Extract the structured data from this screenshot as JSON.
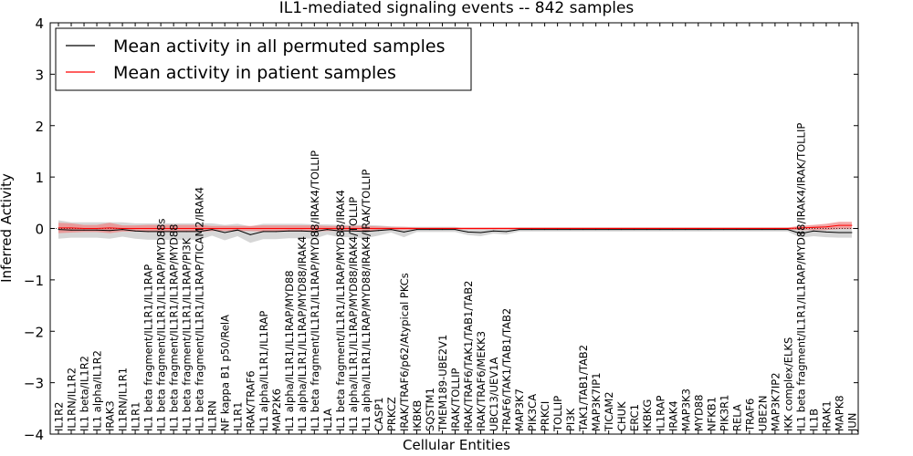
{
  "chart_data": {
    "type": "line",
    "title": "IL1-mediated signaling events -- 842 samples",
    "xlabel": "Cellular Entities",
    "ylabel": "Inferred Activity",
    "ylim": [
      -4,
      4
    ],
    "yticks": [
      "4",
      "3",
      "2",
      "1",
      "0",
      "−1",
      "−2",
      "−3",
      "−4"
    ],
    "ytick_values": [
      4,
      3,
      2,
      1,
      0,
      -1,
      -2,
      -3,
      -4
    ],
    "legend_position": "top-left",
    "categories": [
      "IL1R2",
      "IL1RN/IL1R2",
      "IL1 beta/IL1R2",
      "IL1 alpha/IL1R2",
      "IRAK3",
      "IL1RN/IL1R1",
      "IL1R1",
      "IL1 beta fragment/IL1R1/IL1RAP",
      "IL1 beta fragment/IL1R1/IL1RAP/MYD88s",
      "IL1 beta fragment/IL1R1/IL1RAP/MYD88",
      "IL1 beta fragment/IL1R1/IL1RAP/PI3K",
      "IL1 beta fragment/IL1R1/IL1RAP/TICAM2/IRAK4",
      "IL1RN",
      "NF kappa B1 p50/RelA",
      "IL1R1",
      "IRAK/TRAF6",
      "IL1 alpha/IL1R1/IL1RAP",
      "MAP2K6",
      "IL1 alpha/IL1R1/IL1RAP/MYD88",
      "IL1 alpha/IL1R1/IL1RAP/MYD88/IRAK4",
      "IL1 beta fragment/IL1R1/IL1RAP/MYD88/IRAK4/TOLLIP",
      "IL1A",
      "IL1 beta fragment/IL1R1/IL1RAP/MYD88/IRAK4",
      "IL1 alpha/IL1R1/IL1RAP/MYD88/IRAK4/TOLLIP",
      "IL1 alpha/IL1R1/IL1RAP/MYD88/IRAK4/IRAK/TOLLIP",
      "CASP1",
      "PRKCZ",
      "IRAK/TRAF6/p62/Atypical PKCs",
      "IKBKB",
      "SQSTM1",
      "TMEM189-UBE2V1",
      "IRAK/TOLLIP",
      "IRAK/TRAF6/TAK1/TAB1/TAB2",
      "IRAK/TRAF6/MEKK3",
      "UBC13/UEV1A",
      "TRAF6/TAK1/TAB1/TAB2",
      "MAP3K7",
      "PIK3CA",
      "PRKCI",
      "TOLLIP",
      "PI3K",
      "TAK1/TAB1/TAB2",
      "MAP3K7IP1",
      "TICAM2",
      "CHUK",
      "ERC1",
      "IKBKG",
      "IL1RAP",
      "IRAK4",
      "MAP3K3",
      "MYD88",
      "NFKB1",
      "PIK3R1",
      "RELA",
      "TRAF6",
      "UBE2N",
      "MAP3K7IP2",
      "IKK complex/ELKS",
      "IL1 beta fragment/IL1R1/IL1RAP/MYD88/IRAK4/IRAK/TOLLIP",
      "IL1B",
      "IRAK1",
      "MAPK8",
      "JUN"
    ],
    "series": [
      {
        "name": "Mean activity in all permuted samples",
        "color": "#000000",
        "band_color": "#c8c8c8",
        "values": [
          -0.02,
          -0.03,
          -0.03,
          -0.03,
          -0.04,
          -0.02,
          -0.05,
          -0.06,
          -0.06,
          -0.06,
          -0.06,
          -0.06,
          -0.02,
          -0.08,
          -0.03,
          -0.12,
          -0.06,
          -0.06,
          -0.05,
          -0.05,
          -0.06,
          -0.02,
          -0.05,
          -0.05,
          -0.06,
          -0.04,
          -0.02,
          -0.07,
          -0.02,
          -0.02,
          -0.02,
          -0.02,
          -0.07,
          -0.08,
          -0.05,
          -0.06,
          -0.02,
          -0.02,
          -0.02,
          -0.02,
          -0.02,
          -0.02,
          -0.02,
          -0.02,
          -0.02,
          -0.02,
          -0.02,
          -0.02,
          -0.02,
          -0.02,
          -0.02,
          -0.02,
          -0.02,
          -0.02,
          -0.02,
          -0.02,
          -0.02,
          -0.02,
          -0.1,
          -0.05,
          -0.07,
          -0.08,
          -0.08
        ],
        "band": [
          0.18,
          0.15,
          0.15,
          0.15,
          0.16,
          0.14,
          0.15,
          0.16,
          0.16,
          0.16,
          0.16,
          0.16,
          0.12,
          0.15,
          0.12,
          0.16,
          0.15,
          0.15,
          0.14,
          0.14,
          0.14,
          0.1,
          0.12,
          0.12,
          0.13,
          0.1,
          0.06,
          0.1,
          0.05,
          0.05,
          0.05,
          0.05,
          0.06,
          0.07,
          0.05,
          0.06,
          0.04,
          0.04,
          0.04,
          0.04,
          0.04,
          0.04,
          0.04,
          0.04,
          0.04,
          0.04,
          0.04,
          0.04,
          0.04,
          0.04,
          0.04,
          0.04,
          0.04,
          0.04,
          0.04,
          0.04,
          0.04,
          0.04,
          0.08,
          0.1,
          0.1,
          0.1,
          0.1
        ]
      },
      {
        "name": "Mean activity in patient samples",
        "color": "#ff0000",
        "band_color": "#f08080",
        "values": [
          0.01,
          0.01,
          0.0,
          0.0,
          0.01,
          0.0,
          0.0,
          0.0,
          0.0,
          0.0,
          0.0,
          0.0,
          0.0,
          0.0,
          0.0,
          0.0,
          0.0,
          0.0,
          0.0,
          0.0,
          0.0,
          0.0,
          0.0,
          0.0,
          0.0,
          0.0,
          0.0,
          0.0,
          0.0,
          0.0,
          0.0,
          0.0,
          0.0,
          0.0,
          0.0,
          0.0,
          0.0,
          0.0,
          0.0,
          0.0,
          0.0,
          0.0,
          0.0,
          0.0,
          0.0,
          0.0,
          0.0,
          0.0,
          0.0,
          0.0,
          0.0,
          0.0,
          0.0,
          0.0,
          0.0,
          0.0,
          0.0,
          0.0,
          0.01,
          0.02,
          0.03,
          0.06,
          0.06
        ],
        "band": [
          0.1,
          0.09,
          0.07,
          0.07,
          0.1,
          0.06,
          0.06,
          0.07,
          0.07,
          0.07,
          0.07,
          0.07,
          0.05,
          0.05,
          0.05,
          0.05,
          0.06,
          0.06,
          0.06,
          0.06,
          0.06,
          0.05,
          0.05,
          0.05,
          0.05,
          0.04,
          0.03,
          0.03,
          0.02,
          0.02,
          0.02,
          0.02,
          0.02,
          0.02,
          0.02,
          0.02,
          0.02,
          0.02,
          0.02,
          0.02,
          0.02,
          0.02,
          0.02,
          0.02,
          0.02,
          0.02,
          0.02,
          0.02,
          0.02,
          0.02,
          0.02,
          0.02,
          0.02,
          0.02,
          0.02,
          0.02,
          0.02,
          0.02,
          0.04,
          0.05,
          0.06,
          0.07,
          0.07
        ]
      }
    ]
  }
}
